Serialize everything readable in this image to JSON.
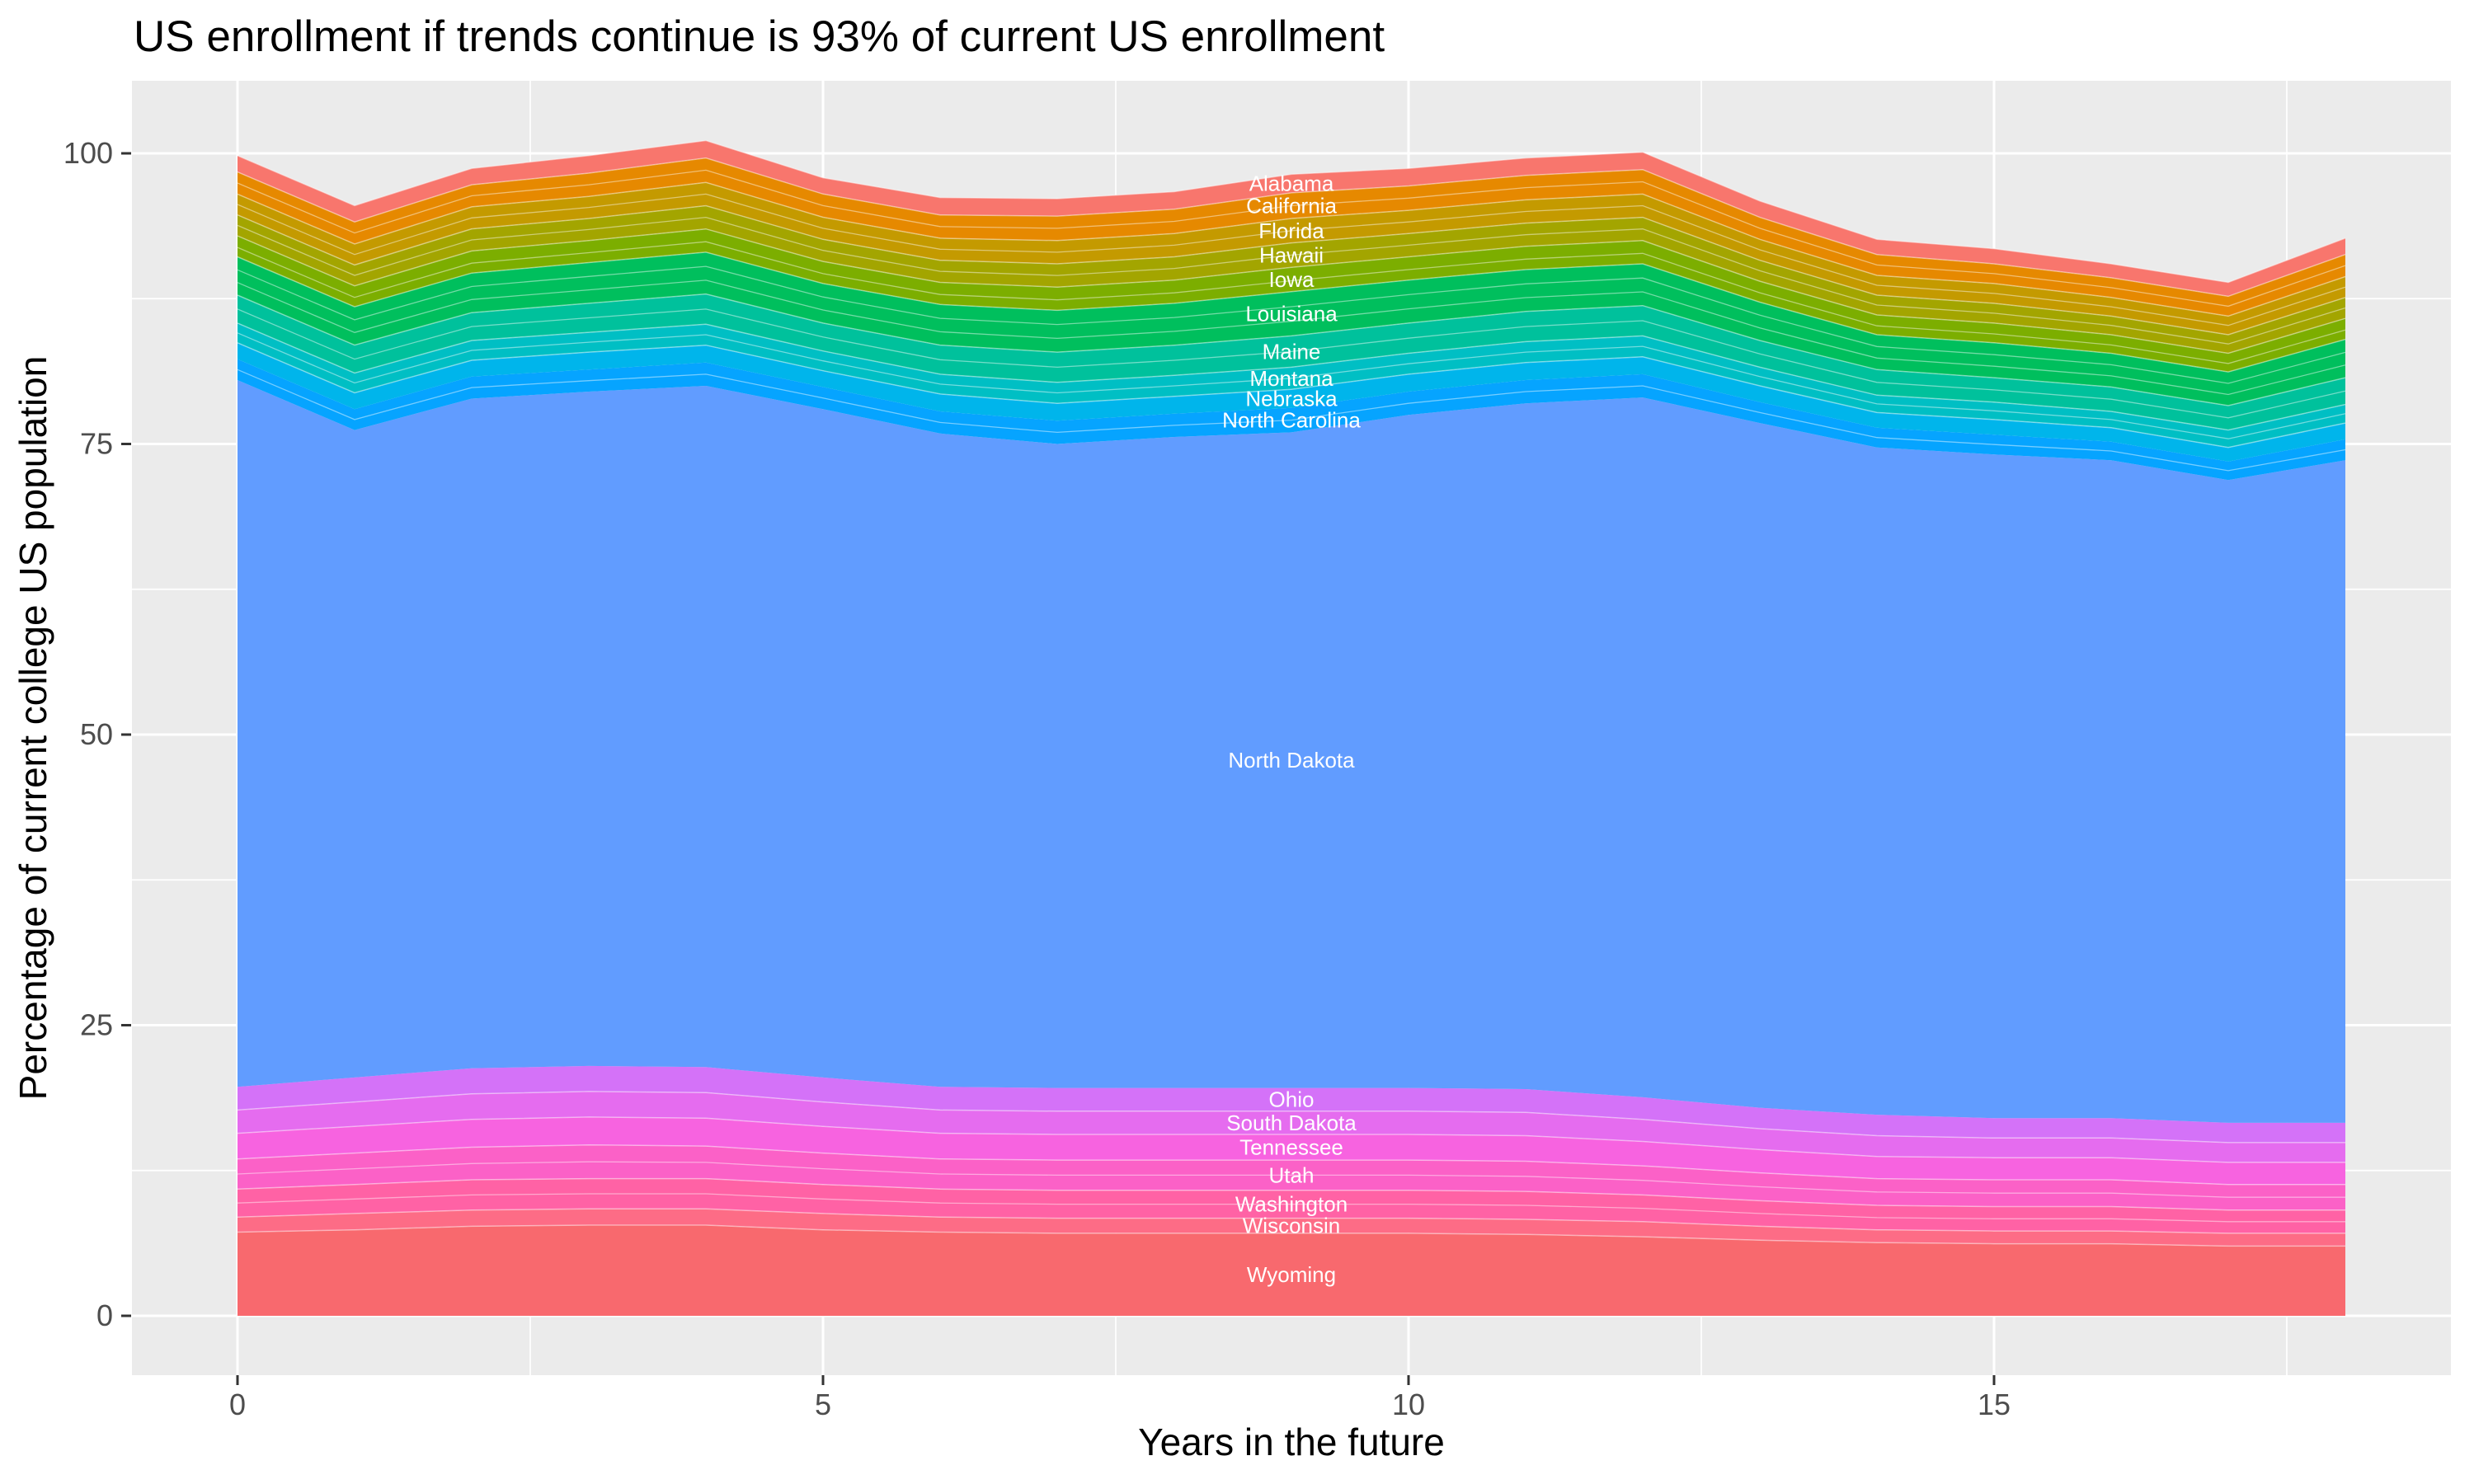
{
  "chart_data": {
    "type": "area",
    "stacked": true,
    "title": "US enrollment if trends continue is 93% of current US enrollment",
    "xlabel": "Years in the future",
    "ylabel": "Percentage of current college US population",
    "x": [
      0,
      1,
      2,
      3,
      4,
      5,
      6,
      7,
      8,
      9,
      10,
      11,
      12,
      13,
      14,
      15,
      16,
      17,
      18
    ],
    "x_ticks": [
      0,
      5,
      10,
      15
    ],
    "y_ticks": [
      0,
      25,
      50,
      75,
      100
    ],
    "x_minor_ticks": [
      2.5,
      7.5,
      12.5,
      17.5
    ],
    "y_minor_ticks": [
      12.5,
      37.5,
      62.5,
      87.5
    ],
    "xlim": [
      0,
      18
    ],
    "ylim": [
      0,
      101.2
    ],
    "grid": true,
    "legend": "none",
    "label_x": 9,
    "series_note": "stacking order bottom to top; values are percent of current college US population",
    "series": [
      {
        "name": "Wyoming",
        "color": "#F8696E",
        "hairline": true,
        "splits": [],
        "values": [
          7.2,
          7.4,
          7.7,
          7.8,
          7.8,
          7.4,
          7.2,
          7.1,
          7.1,
          7.1,
          7.1,
          7.0,
          6.8,
          6.5,
          6.3,
          6.2,
          6.2,
          6.0,
          6.0
        ]
      },
      {
        "name": "Wisconsin",
        "color": "#FD6C86",
        "hairline": true,
        "splits": [],
        "values": [
          1.3,
          1.4,
          1.4,
          1.4,
          1.4,
          1.4,
          1.3,
          1.3,
          1.3,
          1.3,
          1.3,
          1.3,
          1.3,
          1.2,
          1.1,
          1.1,
          1.1,
          1.1,
          1.1
        ]
      },
      {
        "name": "Washington",
        "color": "#FF62A5",
        "hairline": true,
        "splits": [
          0.5
        ],
        "values": [
          2.4,
          2.5,
          2.6,
          2.6,
          2.6,
          2.5,
          2.4,
          2.4,
          2.4,
          2.4,
          2.4,
          2.4,
          2.3,
          2.2,
          2.1,
          2.1,
          2.1,
          2.0,
          2.0
        ]
      },
      {
        "name": "Utah",
        "color": "#FB61C7",
        "hairline": true,
        "splits": [
          0.5
        ],
        "values": [
          2.6,
          2.7,
          2.8,
          2.9,
          2.8,
          2.7,
          2.6,
          2.6,
          2.6,
          2.6,
          2.6,
          2.6,
          2.5,
          2.4,
          2.3,
          2.3,
          2.3,
          2.2,
          2.2
        ]
      },
      {
        "name": "Tennessee",
        "color": "#F763E0",
        "hairline": true,
        "splits": [],
        "values": [
          2.2,
          2.3,
          2.4,
          2.4,
          2.4,
          2.3,
          2.2,
          2.2,
          2.2,
          2.2,
          2.2,
          2.2,
          2.1,
          2.0,
          1.9,
          1.9,
          1.9,
          1.9,
          1.9
        ]
      },
      {
        "name": "South Dakota",
        "color": "#E56CEF",
        "hairline": true,
        "splits": [],
        "values": [
          2.0,
          2.1,
          2.2,
          2.2,
          2.2,
          2.1,
          2.0,
          2.0,
          2.0,
          2.0,
          2.0,
          2.0,
          1.9,
          1.8,
          1.8,
          1.7,
          1.7,
          1.7,
          1.7
        ]
      },
      {
        "name": "Ohio",
        "color": "#D472F8",
        "hairline": false,
        "splits": [],
        "values": [
          2.0,
          2.1,
          2.2,
          2.2,
          2.2,
          2.1,
          2.0,
          2.0,
          2.0,
          2.0,
          2.0,
          2.0,
          1.9,
          1.8,
          1.8,
          1.7,
          1.7,
          1.7,
          1.7
        ]
      },
      {
        "name": "North Dakota",
        "color": "#619CFF",
        "hairline": false,
        "splits": [],
        "values": [
          60.8,
          55.7,
          57.6,
          58.0,
          58.6,
          57.5,
          56.2,
          55.4,
          56.0,
          56.4,
          57.9,
          59.0,
          60.2,
          58.9,
          57.4,
          57.1,
          56.6,
          55.3,
          57.0
        ]
      },
      {
        "name": "North Carolina",
        "color": "#06A4FF",
        "hairline": false,
        "splits": [
          0.5
        ],
        "values": [
          1.8,
          1.8,
          1.9,
          1.9,
          2.0,
          1.9,
          1.9,
          2.0,
          2.0,
          2.1,
          2.0,
          2.0,
          2.0,
          1.8,
          1.7,
          1.7,
          1.6,
          1.6,
          1.8
        ]
      },
      {
        "name": "Nebraska",
        "color": "#00B5EB",
        "hairline": true,
        "splits": [],
        "values": [
          1.4,
          1.4,
          1.4,
          1.5,
          1.5,
          1.4,
          1.5,
          1.5,
          1.5,
          1.6,
          1.5,
          1.5,
          1.5,
          1.4,
          1.3,
          1.3,
          1.2,
          1.2,
          1.4
        ]
      },
      {
        "name": "Montana",
        "color": "#00BFC4",
        "hairline": true,
        "splits": [
          0.5
        ],
        "values": [
          1.7,
          1.7,
          1.7,
          1.7,
          1.8,
          1.7,
          1.7,
          1.8,
          1.8,
          1.9,
          1.8,
          1.8,
          1.8,
          1.6,
          1.5,
          1.5,
          1.4,
          1.5,
          1.6
        ]
      },
      {
        "name": "Maine",
        "color": "#00C19C",
        "hairline": true,
        "splits": [
          0.5
        ],
        "values": [
          2.4,
          2.4,
          2.4,
          2.5,
          2.6,
          2.4,
          2.5,
          2.6,
          2.6,
          2.7,
          2.6,
          2.6,
          2.6,
          2.3,
          2.2,
          2.1,
          2.1,
          2.1,
          2.3
        ]
      },
      {
        "name": "Louisiana",
        "color": "#00BF5D",
        "hairline": true,
        "splits": [
          0.33,
          0.66
        ],
        "values": [
          3.3,
          3.3,
          3.4,
          3.5,
          3.6,
          3.4,
          3.5,
          3.6,
          3.6,
          3.8,
          3.7,
          3.6,
          3.6,
          3.3,
          3.0,
          3.0,
          2.9,
          2.9,
          3.3
        ]
      },
      {
        "name": "Iowa",
        "color": "#7CAE00",
        "hairline": true,
        "splits": [
          0.45
        ],
        "values": [
          1.8,
          1.8,
          1.9,
          1.9,
          2.0,
          1.9,
          1.9,
          2.0,
          2.0,
          2.1,
          2.0,
          2.0,
          2.0,
          1.8,
          1.7,
          1.7,
          1.6,
          1.6,
          1.8
        ]
      },
      {
        "name": "Hawaii",
        "color": "#A3A500",
        "hairline": true,
        "splits": [
          0.5
        ],
        "values": [
          1.8,
          1.8,
          1.9,
          1.9,
          2.0,
          1.9,
          1.9,
          2.0,
          2.0,
          2.1,
          2.0,
          2.0,
          2.0,
          1.8,
          1.7,
          1.7,
          1.6,
          1.6,
          1.8
        ]
      },
      {
        "name": "Florida",
        "color": "#C49A00",
        "hairline": true,
        "splits": [
          0.5
        ],
        "values": [
          1.8,
          1.8,
          1.9,
          1.9,
          2.0,
          1.9,
          1.9,
          2.0,
          2.0,
          2.1,
          2.0,
          2.0,
          2.0,
          1.8,
          1.7,
          1.7,
          1.6,
          1.6,
          1.8
        ]
      },
      {
        "name": "California",
        "color": "#E68900",
        "hairline": true,
        "splits": [
          0.5
        ],
        "values": [
          1.9,
          1.9,
          1.9,
          2.0,
          2.1,
          2.0,
          2.0,
          2.1,
          2.1,
          2.2,
          2.1,
          2.1,
          2.1,
          1.9,
          1.8,
          1.7,
          1.7,
          1.7,
          1.9
        ]
      },
      {
        "name": "Alabama",
        "color": "#F8766D",
        "hairline": true,
        "splits": [],
        "values": [
          1.4,
          1.4,
          1.4,
          1.5,
          1.5,
          1.4,
          1.5,
          1.5,
          1.5,
          1.6,
          1.5,
          1.5,
          1.5,
          1.4,
          1.3,
          1.3,
          1.2,
          1.2,
          1.4
        ]
      }
    ]
  },
  "style": {
    "panel_bg": "#EBEBEB",
    "grid_color": "#FFFFFF",
    "tick_mark_color": "#333333",
    "axis_text_color": "#4D4D4D",
    "title_color": "#000000",
    "area_label_color": "#FFFFFF",
    "hairline_color": "rgba(255,255,255,0.45)"
  }
}
